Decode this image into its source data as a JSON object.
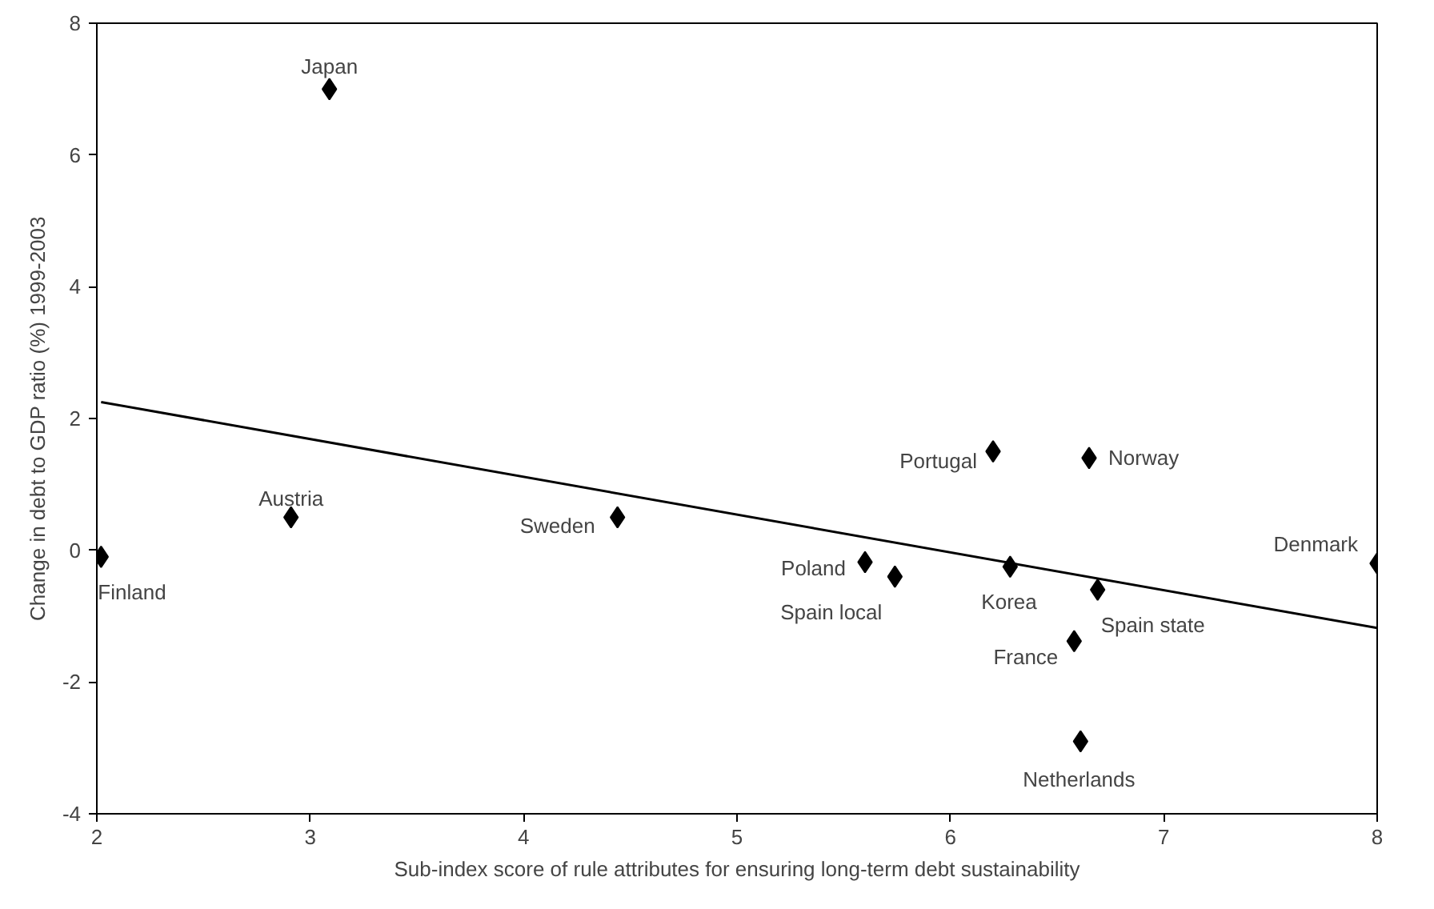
{
  "chart_data": {
    "type": "scatter",
    "xlabel": "Sub-index score of rule attributes for ensuring long-term debt sustainability",
    "ylabel": "Change in debt to GDP ratio (%) 1999-2003",
    "xlim": [
      2,
      8
    ],
    "ylim": [
      -4,
      8
    ],
    "xticks": [
      2,
      3,
      4,
      5,
      6,
      7,
      8
    ],
    "yticks": [
      -4,
      -2,
      0,
      2,
      4,
      6,
      8
    ],
    "grid": false,
    "series": [
      {
        "marker": "diamond",
        "color": "#000000",
        "x": [
          3.09,
          2.02,
          2.91,
          4.44,
          5.6,
          5.74,
          6.2,
          6.65,
          6.28,
          6.58,
          6.69,
          6.61,
          8.0
        ],
        "values": [
          7.0,
          -0.1,
          0.5,
          0.5,
          -0.18,
          -0.4,
          1.5,
          1.4,
          -0.25,
          -1.38,
          -0.6,
          -2.9,
          -0.2
        ]
      },
      {
        "type": "line",
        "color": "#000000",
        "x": [
          2.02,
          8.0
        ],
        "values": [
          2.25,
          -1.18
        ]
      }
    ],
    "annotations": [
      {
        "text": "Japan",
        "x": 3.09,
        "y": 7.0
      },
      {
        "text": "Finland",
        "x": 2.02,
        "y": -0.1
      },
      {
        "text": "Austria",
        "x": 2.91,
        "y": 0.5
      },
      {
        "text": "Sweden",
        "x": 4.44,
        "y": 0.5
      },
      {
        "text": "Poland",
        "x": 5.6,
        "y": -0.18
      },
      {
        "text": "Spain local",
        "x": 5.74,
        "y": -0.4
      },
      {
        "text": "Portugal",
        "x": 6.2,
        "y": 1.5
      },
      {
        "text": "Norway",
        "x": 6.65,
        "y": 1.4
      },
      {
        "text": "Korea",
        "x": 6.28,
        "y": -0.25
      },
      {
        "text": "France",
        "x": 6.58,
        "y": -1.38
      },
      {
        "text": "Spain state",
        "x": 6.69,
        "y": -0.6
      },
      {
        "text": "Netherlands",
        "x": 6.61,
        "y": -2.9
      },
      {
        "text": "Denmark",
        "x": 8.0,
        "y": -0.2
      }
    ]
  }
}
